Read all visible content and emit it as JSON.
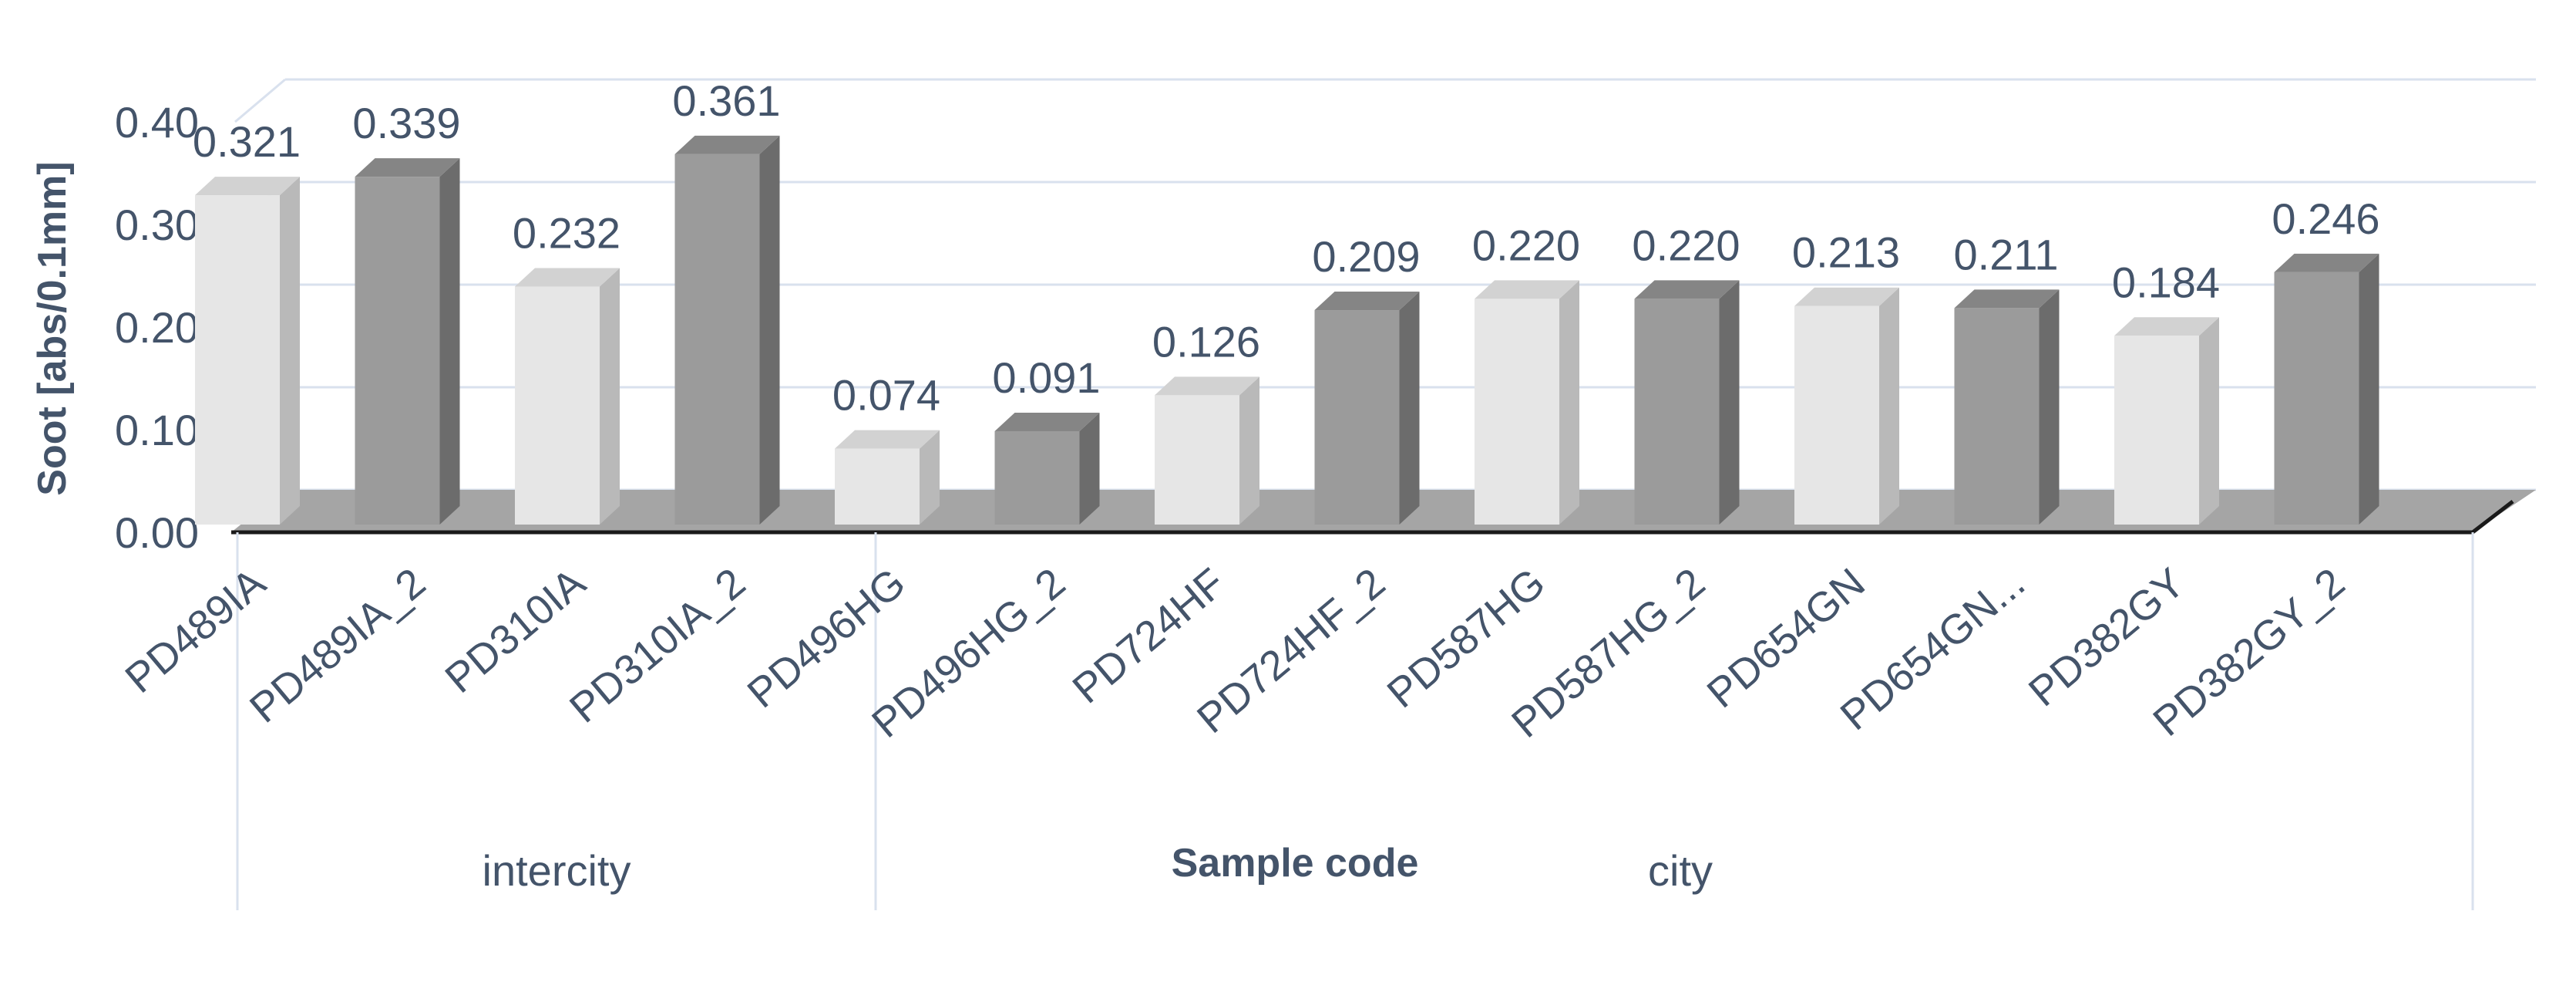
{
  "chart_data": {
    "type": "bar",
    "ylabel": "Soot [abs/0.1mm]",
    "xlabel": "Sample code",
    "ylim": [
      0,
      0.4
    ],
    "yticks": [
      "0.00",
      "0.10",
      "0.20",
      "0.30",
      "0.40"
    ],
    "grid": true,
    "categories": [
      "PD489IA",
      "PD489IA_2",
      "PD310IA",
      "PD310IA_2",
      "PD496HG",
      "PD496HG_2",
      "PD724HF",
      "PD724HF_2",
      "PD587HG",
      "PD587HG_2",
      "PD654GN",
      "PD654GN...",
      "PD382GY",
      "PD382GY_2"
    ],
    "values": [
      0.321,
      0.339,
      0.232,
      0.361,
      0.074,
      0.091,
      0.126,
      0.209,
      0.22,
      0.22,
      0.213,
      0.211,
      0.184,
      0.246
    ],
    "value_labels": [
      "0.321",
      "0.339",
      "0.232",
      "0.361",
      "0.074",
      "0.091",
      "0.126",
      "0.209",
      "0.220",
      "0.220",
      "0.213",
      "0.211",
      "0.184",
      "0.246"
    ],
    "groups": [
      {
        "label": "intercity",
        "count": 4
      },
      {
        "label": "city",
        "count": 10
      }
    ],
    "colors": {
      "light_front": "#e6e6e6",
      "light_side": "#b9b9b9",
      "light_top": "#d2d2d2",
      "dark_front": "#9b9b9b",
      "dark_side": "#6c6c6c",
      "dark_top": "#858585",
      "floor": "#a5a5a5",
      "grid": "#d9e1ee",
      "text": "#44546a"
    }
  }
}
